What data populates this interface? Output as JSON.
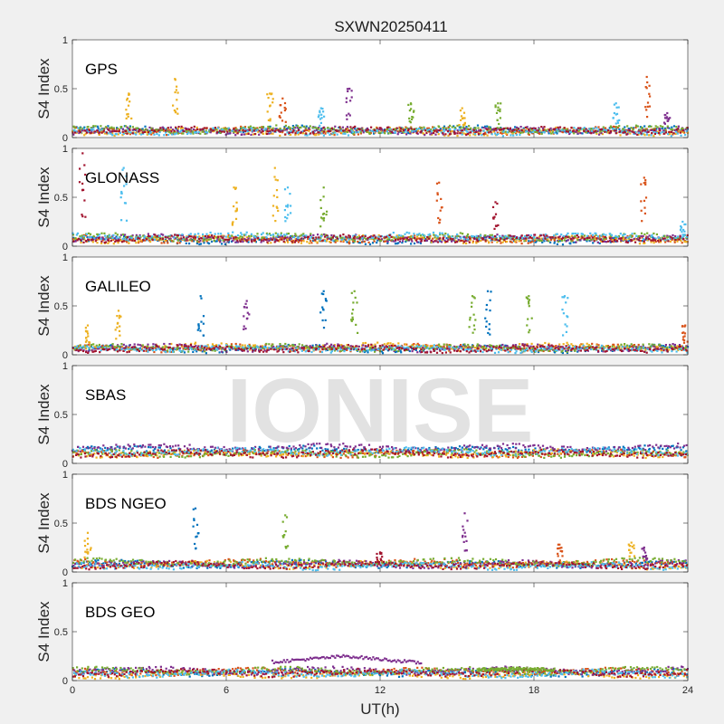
{
  "title": "SXWN20250411",
  "xlabel": "UT(h)",
  "watermark": "IONISE",
  "colors": {
    "series": [
      "#0072BD",
      "#D95319",
      "#EDB120",
      "#7E2F8E",
      "#77AC30",
      "#4DBEEE",
      "#A2142F"
    ],
    "axis": "#262626",
    "background": "#f0f0f0",
    "plot_background": "#ffffff"
  },
  "chart_data": [
    {
      "type": "scatter",
      "panel_label": "GPS",
      "ylabel": "S4 Index",
      "xlim": [
        0,
        24
      ],
      "ylim": [
        0,
        1
      ],
      "xticks": [
        0,
        6,
        12,
        18,
        24
      ],
      "yticks": [
        0,
        0.5,
        1
      ],
      "baseline": [
        0.08,
        0.07,
        0.06,
        0.07,
        0.08,
        0.06,
        0.07
      ],
      "spikes": [
        {
          "x": 2.2,
          "peak": 0.45,
          "series": 2
        },
        {
          "x": 4.0,
          "peak": 0.6,
          "series": 2
        },
        {
          "x": 7.7,
          "peak": 0.45,
          "series": 2
        },
        {
          "x": 8.2,
          "peak": 0.4,
          "series": 1
        },
        {
          "x": 9.7,
          "peak": 0.3,
          "series": 5
        },
        {
          "x": 10.8,
          "peak": 0.5,
          "series": 3
        },
        {
          "x": 13.2,
          "peak": 0.35,
          "series": 4
        },
        {
          "x": 15.2,
          "peak": 0.3,
          "series": 2
        },
        {
          "x": 16.6,
          "peak": 0.35,
          "series": 4
        },
        {
          "x": 21.2,
          "peak": 0.35,
          "series": 5
        },
        {
          "x": 22.4,
          "peak": 0.62,
          "series": 1
        },
        {
          "x": 23.2,
          "peak": 0.25,
          "series": 3
        }
      ]
    },
    {
      "type": "scatter",
      "panel_label": "GLONASS",
      "ylabel": "S4 Index",
      "xlim": [
        0,
        24
      ],
      "ylim": [
        0,
        1
      ],
      "xticks": [
        0,
        6,
        12,
        18,
        24
      ],
      "yticks": [
        0,
        0.5,
        1
      ],
      "baseline": [
        0.06,
        0.07,
        0.07,
        0.08,
        0.09,
        0.1,
        0.08
      ],
      "spikes": [
        {
          "x": 0.4,
          "peak": 0.95,
          "series": 6
        },
        {
          "x": 2.0,
          "peak": 0.8,
          "series": 5
        },
        {
          "x": 6.3,
          "peak": 0.6,
          "series": 2
        },
        {
          "x": 7.9,
          "peak": 0.8,
          "series": 2
        },
        {
          "x": 8.4,
          "peak": 0.6,
          "series": 5
        },
        {
          "x": 9.8,
          "peak": 0.6,
          "series": 4
        },
        {
          "x": 14.3,
          "peak": 0.65,
          "series": 1
        },
        {
          "x": 16.5,
          "peak": 0.45,
          "series": 6
        },
        {
          "x": 22.3,
          "peak": 0.7,
          "series": 1
        },
        {
          "x": 23.8,
          "peak": 0.25,
          "series": 5
        }
      ]
    },
    {
      "type": "scatter",
      "panel_label": "GALILEO",
      "ylabel": "S4 Index",
      "xlim": [
        0,
        24
      ],
      "ylim": [
        0,
        1
      ],
      "xticks": [
        0,
        6,
        12,
        18,
        24
      ],
      "yticks": [
        0,
        0.5,
        1
      ],
      "baseline": [
        0.06,
        0.07,
        0.08,
        0.07,
        0.07,
        0.06,
        0.06
      ],
      "spikes": [
        {
          "x": 0.6,
          "peak": 0.3,
          "series": 2
        },
        {
          "x": 1.8,
          "peak": 0.45,
          "series": 2
        },
        {
          "x": 5.0,
          "peak": 0.6,
          "series": 0
        },
        {
          "x": 6.8,
          "peak": 0.55,
          "series": 3
        },
        {
          "x": 9.8,
          "peak": 0.65,
          "series": 0
        },
        {
          "x": 11.0,
          "peak": 0.65,
          "series": 4
        },
        {
          "x": 15.6,
          "peak": 0.6,
          "series": 4
        },
        {
          "x": 16.2,
          "peak": 0.65,
          "series": 0
        },
        {
          "x": 17.8,
          "peak": 0.6,
          "series": 4
        },
        {
          "x": 19.2,
          "peak": 0.6,
          "series": 5
        },
        {
          "x": 23.9,
          "peak": 0.3,
          "series": 1
        }
      ]
    },
    {
      "type": "scatter",
      "panel_label": "SBAS",
      "ylabel": "S4 Index",
      "xlim": [
        0,
        24
      ],
      "ylim": [
        0,
        1
      ],
      "xticks": [
        0,
        6,
        12,
        18,
        24
      ],
      "yticks": [
        0,
        0.5,
        1
      ],
      "baseline": [
        0.14,
        0.1,
        0.1,
        0.16,
        0.1,
        0.12,
        0.1
      ],
      "spikes": []
    },
    {
      "type": "scatter",
      "panel_label": "BDS NGEO",
      "ylabel": "S4 Index",
      "xlim": [
        0,
        24
      ],
      "ylim": [
        0,
        1
      ],
      "xticks": [
        0,
        6,
        12,
        18,
        24
      ],
      "yticks": [
        0,
        0.5,
        1
      ],
      "baseline": [
        0.08,
        0.09,
        0.07,
        0.08,
        0.1,
        0.06,
        0.07
      ],
      "spikes": [
        {
          "x": 0.6,
          "peak": 0.4,
          "series": 2
        },
        {
          "x": 4.8,
          "peak": 0.65,
          "series": 0
        },
        {
          "x": 8.3,
          "peak": 0.58,
          "series": 4
        },
        {
          "x": 12.0,
          "peak": 0.2,
          "series": 6
        },
        {
          "x": 15.3,
          "peak": 0.6,
          "series": 3
        },
        {
          "x": 19.0,
          "peak": 0.28,
          "series": 1
        },
        {
          "x": 21.8,
          "peak": 0.3,
          "series": 2
        },
        {
          "x": 22.3,
          "peak": 0.25,
          "series": 3
        }
      ]
    },
    {
      "type": "scatter",
      "panel_label": "BDS GEO",
      "ylabel": "S4 Index",
      "xlim": [
        0,
        24
      ],
      "ylim": [
        0,
        1
      ],
      "xticks": [
        0,
        6,
        12,
        18,
        24
      ],
      "yticks": [
        0,
        0.5,
        1
      ],
      "baseline": [
        0.08,
        0.09,
        0.06,
        0.1,
        0.1,
        0.07,
        0.08
      ],
      "segments": [
        {
          "x_start": 7.8,
          "x_end": 13.6,
          "level_start": 0.19,
          "level_mid": 0.25,
          "level_end": 0.18,
          "series": 3
        },
        {
          "x_start": 15.8,
          "x_end": 18.8,
          "level_start": 0.11,
          "level_mid": 0.12,
          "level_end": 0.11,
          "series": 4
        }
      ],
      "spikes": []
    }
  ]
}
